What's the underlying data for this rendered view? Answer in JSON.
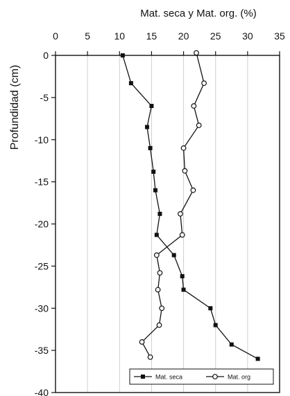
{
  "chart_data": {
    "type": "line",
    "title": "",
    "xlabel": "Mat. seca y Mat. org. (%)",
    "ylabel": "Profundidad (cm)",
    "xlim": [
      0,
      35
    ],
    "ylim": [
      -40,
      0
    ],
    "x_ticks": [
      "0",
      "5",
      "10",
      "15",
      "20",
      "25",
      "30",
      "35"
    ],
    "y_ticks": [
      "0",
      "-5",
      "-10",
      "-15",
      "-20",
      "-25",
      "-30",
      "-35",
      "-40"
    ],
    "x_axis_position": "top",
    "grid": "vertical",
    "legend_position": "bottom-right",
    "series": [
      {
        "name": "Mat. seca",
        "marker": "filled-square",
        "color": "#111111",
        "points": [
          {
            "x": 10.5,
            "y": 0
          },
          {
            "x": 11.8,
            "y": -3.3
          },
          {
            "x": 15.0,
            "y": -6.0
          },
          {
            "x": 14.3,
            "y": -8.5
          },
          {
            "x": 14.8,
            "y": -11.0
          },
          {
            "x": 15.3,
            "y": -13.8
          },
          {
            "x": 15.6,
            "y": -16.0
          },
          {
            "x": 16.3,
            "y": -18.8
          },
          {
            "x": 15.8,
            "y": -21.3
          },
          {
            "x": 18.5,
            "y": -23.7
          },
          {
            "x": 19.8,
            "y": -26.2
          },
          {
            "x": 20.0,
            "y": -27.8
          },
          {
            "x": 24.2,
            "y": -30.0
          },
          {
            "x": 25.0,
            "y": -32.0
          },
          {
            "x": 27.5,
            "y": -34.3
          },
          {
            "x": 31.6,
            "y": -36.0
          }
        ]
      },
      {
        "name": "Mat. org",
        "marker": "open-circle",
        "color": "#111111",
        "points": [
          {
            "x": 22.0,
            "y": 0.3
          },
          {
            "x": 23.2,
            "y": -3.3
          },
          {
            "x": 21.6,
            "y": -6.0
          },
          {
            "x": 22.4,
            "y": -8.3
          },
          {
            "x": 20.0,
            "y": -11.0
          },
          {
            "x": 20.2,
            "y": -13.7
          },
          {
            "x": 21.5,
            "y": -16.0
          },
          {
            "x": 19.5,
            "y": -18.8
          },
          {
            "x": 19.8,
            "y": -21.3
          },
          {
            "x": 15.8,
            "y": -23.7
          },
          {
            "x": 16.3,
            "y": -25.8
          },
          {
            "x": 16.0,
            "y": -27.8
          },
          {
            "x": 16.6,
            "y": -30.0
          },
          {
            "x": 16.2,
            "y": -32.0
          },
          {
            "x": 13.5,
            "y": -34.0
          },
          {
            "x": 14.8,
            "y": -35.8
          }
        ]
      }
    ]
  }
}
